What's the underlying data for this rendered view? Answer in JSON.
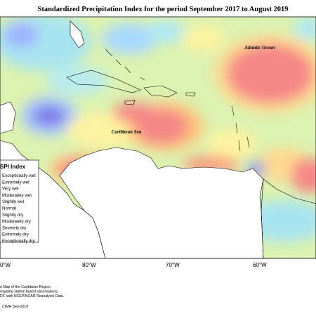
{
  "title": "Standardized Precipitation Index for the period September 2017 to August 2019",
  "labels": {
    "atlantic": "Atlantic Ocean",
    "caribbean": "Caribbean Sea"
  },
  "legend": {
    "title": "SPI Index",
    "items": [
      "Exceptionally wet",
      "Extremely wet",
      "Very wet",
      "Moderately wet",
      "Slightly wet",
      "Normal",
      "Slightly dry",
      "Moderately dry",
      "Severely dry",
      "Extremely dry",
      "Exceptionally dry"
    ]
  },
  "longitudes": [
    "0°W",
    "80°W",
    "70°W",
    "60°W"
  ],
  "footer": {
    "lines": [
      "n Map of the Caribbean Region",
      "regating station based observations,",
      "DF, with NCEP/NCAR Reanalysis Data."
    ],
    "credit": "CIMH Sep-2019"
  }
}
